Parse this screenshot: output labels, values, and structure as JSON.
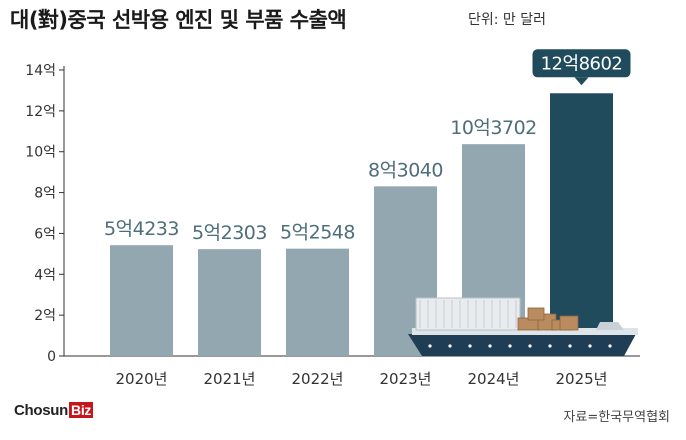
{
  "header": {
    "title": "대(對)중국 선박용 엔진 및 부품 수출액",
    "unit": "단위: 만 달러"
  },
  "chart_data": {
    "type": "bar",
    "title": "대(對)중국 선박용 엔진 및 부품 수출액",
    "unit": "단위: 만 달러",
    "categories": [
      "2020년",
      "2021년",
      "2022년",
      "2023년",
      "2024년",
      "2025년"
    ],
    "values": [
      54233,
      52303,
      52548,
      83040,
      103702,
      128602
    ],
    "data_labels": [
      "5억4233",
      "5억2303",
      "5억2548",
      "8억3040",
      "10억3702",
      "12억8602"
    ],
    "yticks": [
      0,
      20000,
      40000,
      60000,
      80000,
      100000,
      120000,
      140000
    ],
    "ytick_labels": [
      "0",
      "2억",
      "4억",
      "6억",
      "8억",
      "10억",
      "12억",
      "14억"
    ],
    "ylim": [
      0,
      140000
    ],
    "highlight_index": 5,
    "grid": false
  },
  "colors": {
    "bar": "#93a7b0",
    "highlight": "#1f4b5c",
    "label": "#4e6e7b",
    "axis": "#333333"
  },
  "footer": {
    "logo_text": "Chosun",
    "logo_biz": "Biz",
    "source": "자료=한국무역협회"
  }
}
